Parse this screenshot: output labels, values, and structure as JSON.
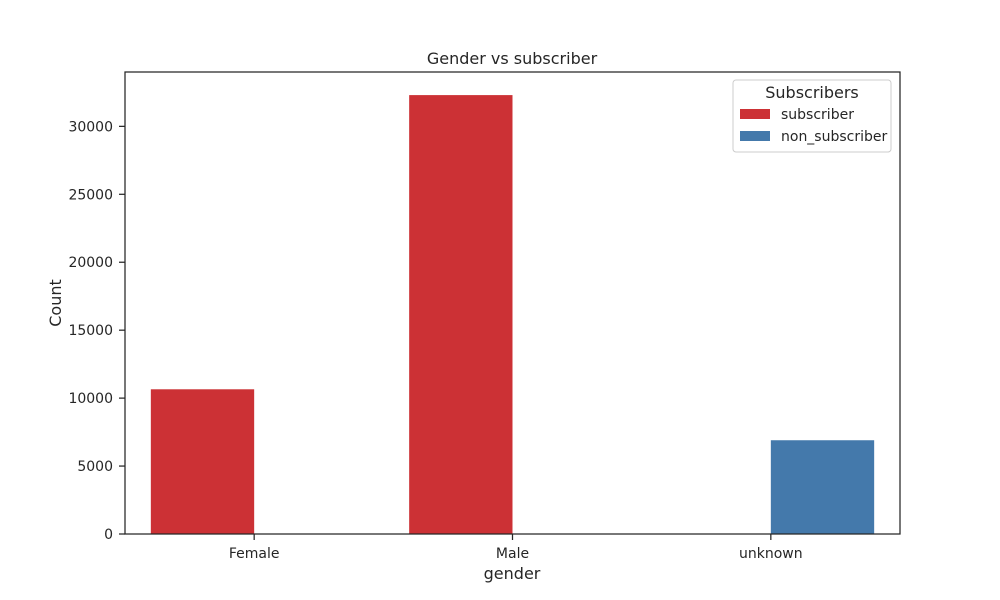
{
  "chart_data": {
    "type": "bar",
    "title": "Gender vs subscriber",
    "xlabel": "gender",
    "ylabel": "Count",
    "categories": [
      "Female",
      "Male",
      "unknown"
    ],
    "series": [
      {
        "name": "subscriber",
        "color": "#cc3135",
        "values": [
          10650,
          32300,
          null
        ]
      },
      {
        "name": "non_subscriber",
        "color": "#4479ab",
        "values": [
          null,
          null,
          6900
        ]
      }
    ],
    "ylim": [
      0,
      34000
    ],
    "yticks": [
      0,
      5000,
      10000,
      15000,
      20000,
      25000,
      30000
    ],
    "grid": false,
    "legend": {
      "title": "Subscribers",
      "position": "top-right"
    }
  }
}
